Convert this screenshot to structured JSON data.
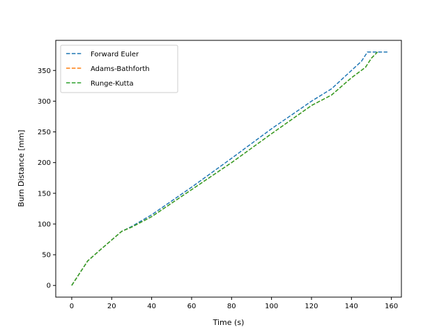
{
  "chart_data": {
    "type": "line",
    "title": "",
    "xlabel": "Time (s)",
    "ylabel": "Burn Distance [mm]",
    "xlim": [
      -8,
      165
    ],
    "ylim": [
      -19,
      399
    ],
    "xticks": [
      0,
      20,
      40,
      60,
      80,
      100,
      120,
      140,
      160
    ],
    "yticks": [
      0,
      50,
      100,
      150,
      200,
      250,
      300,
      350
    ],
    "grid": false,
    "legend_position": "upper-left",
    "series": [
      {
        "name": "Forward Euler",
        "color": "#1f77b4",
        "style": "dashed",
        "x": [
          0,
          8,
          15,
          25,
          30,
          40,
          60,
          80,
          100,
          120,
          130,
          140,
          145,
          148,
          150,
          155,
          158
        ],
        "y": [
          0,
          40,
          60,
          88,
          96,
          115,
          160,
          207,
          255,
          300,
          320,
          350,
          365,
          380,
          380,
          380,
          380
        ]
      },
      {
        "name": "Adams-Bathforth",
        "color": "#ff7f0e",
        "style": "dashed",
        "x": [
          0,
          8,
          15,
          25,
          30,
          40,
          60,
          80,
          100,
          120,
          130,
          140,
          147,
          150,
          153
        ],
        "y": [
          0,
          40,
          60,
          88,
          95,
          112,
          156,
          200,
          247,
          293,
          310,
          338,
          355,
          370,
          380
        ]
      },
      {
        "name": "Runge-Kutta",
        "color": "#2ca02c",
        "style": "dashed",
        "x": [
          0,
          8,
          15,
          25,
          30,
          40,
          60,
          80,
          100,
          120,
          130,
          140,
          147,
          150,
          153
        ],
        "y": [
          0,
          40,
          60,
          88,
          95,
          112,
          156,
          200,
          247,
          293,
          310,
          338,
          355,
          370,
          380
        ]
      }
    ]
  }
}
